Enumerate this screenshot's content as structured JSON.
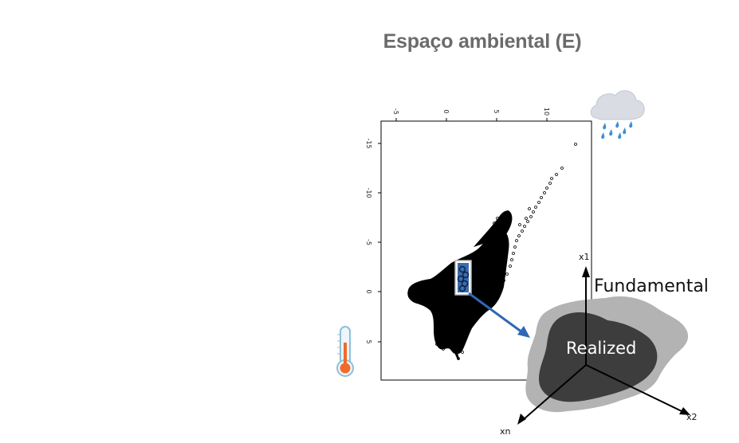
{
  "title": "Espaço ambiental (E)",
  "scatter_plot": {
    "top_tick_labels": [
      "-5",
      "0",
      "5",
      "10"
    ],
    "left_tick_labels": [
      "-15",
      "-10",
      "-5",
      "0",
      "5"
    ]
  },
  "niche_diagram": {
    "fundamental_label": "Fundamental",
    "realized_label": "Realized",
    "axis_x1": "x1",
    "axis_x2": "x2",
    "axis_xn": "xn"
  },
  "icons": {
    "weather": "rain-cloud-icon",
    "temperature": "thermometer-icon"
  },
  "colors": {
    "title": "#6b6b6b",
    "selection_fill": "#3a6cb0",
    "arrow": "#2f67b5",
    "fundamental": "#b3b3b3",
    "realized": "#3d3d3d",
    "cloud": "#d9dde3",
    "rain": "#3b8fd9",
    "thermo_bulb": "#f26a2a"
  }
}
